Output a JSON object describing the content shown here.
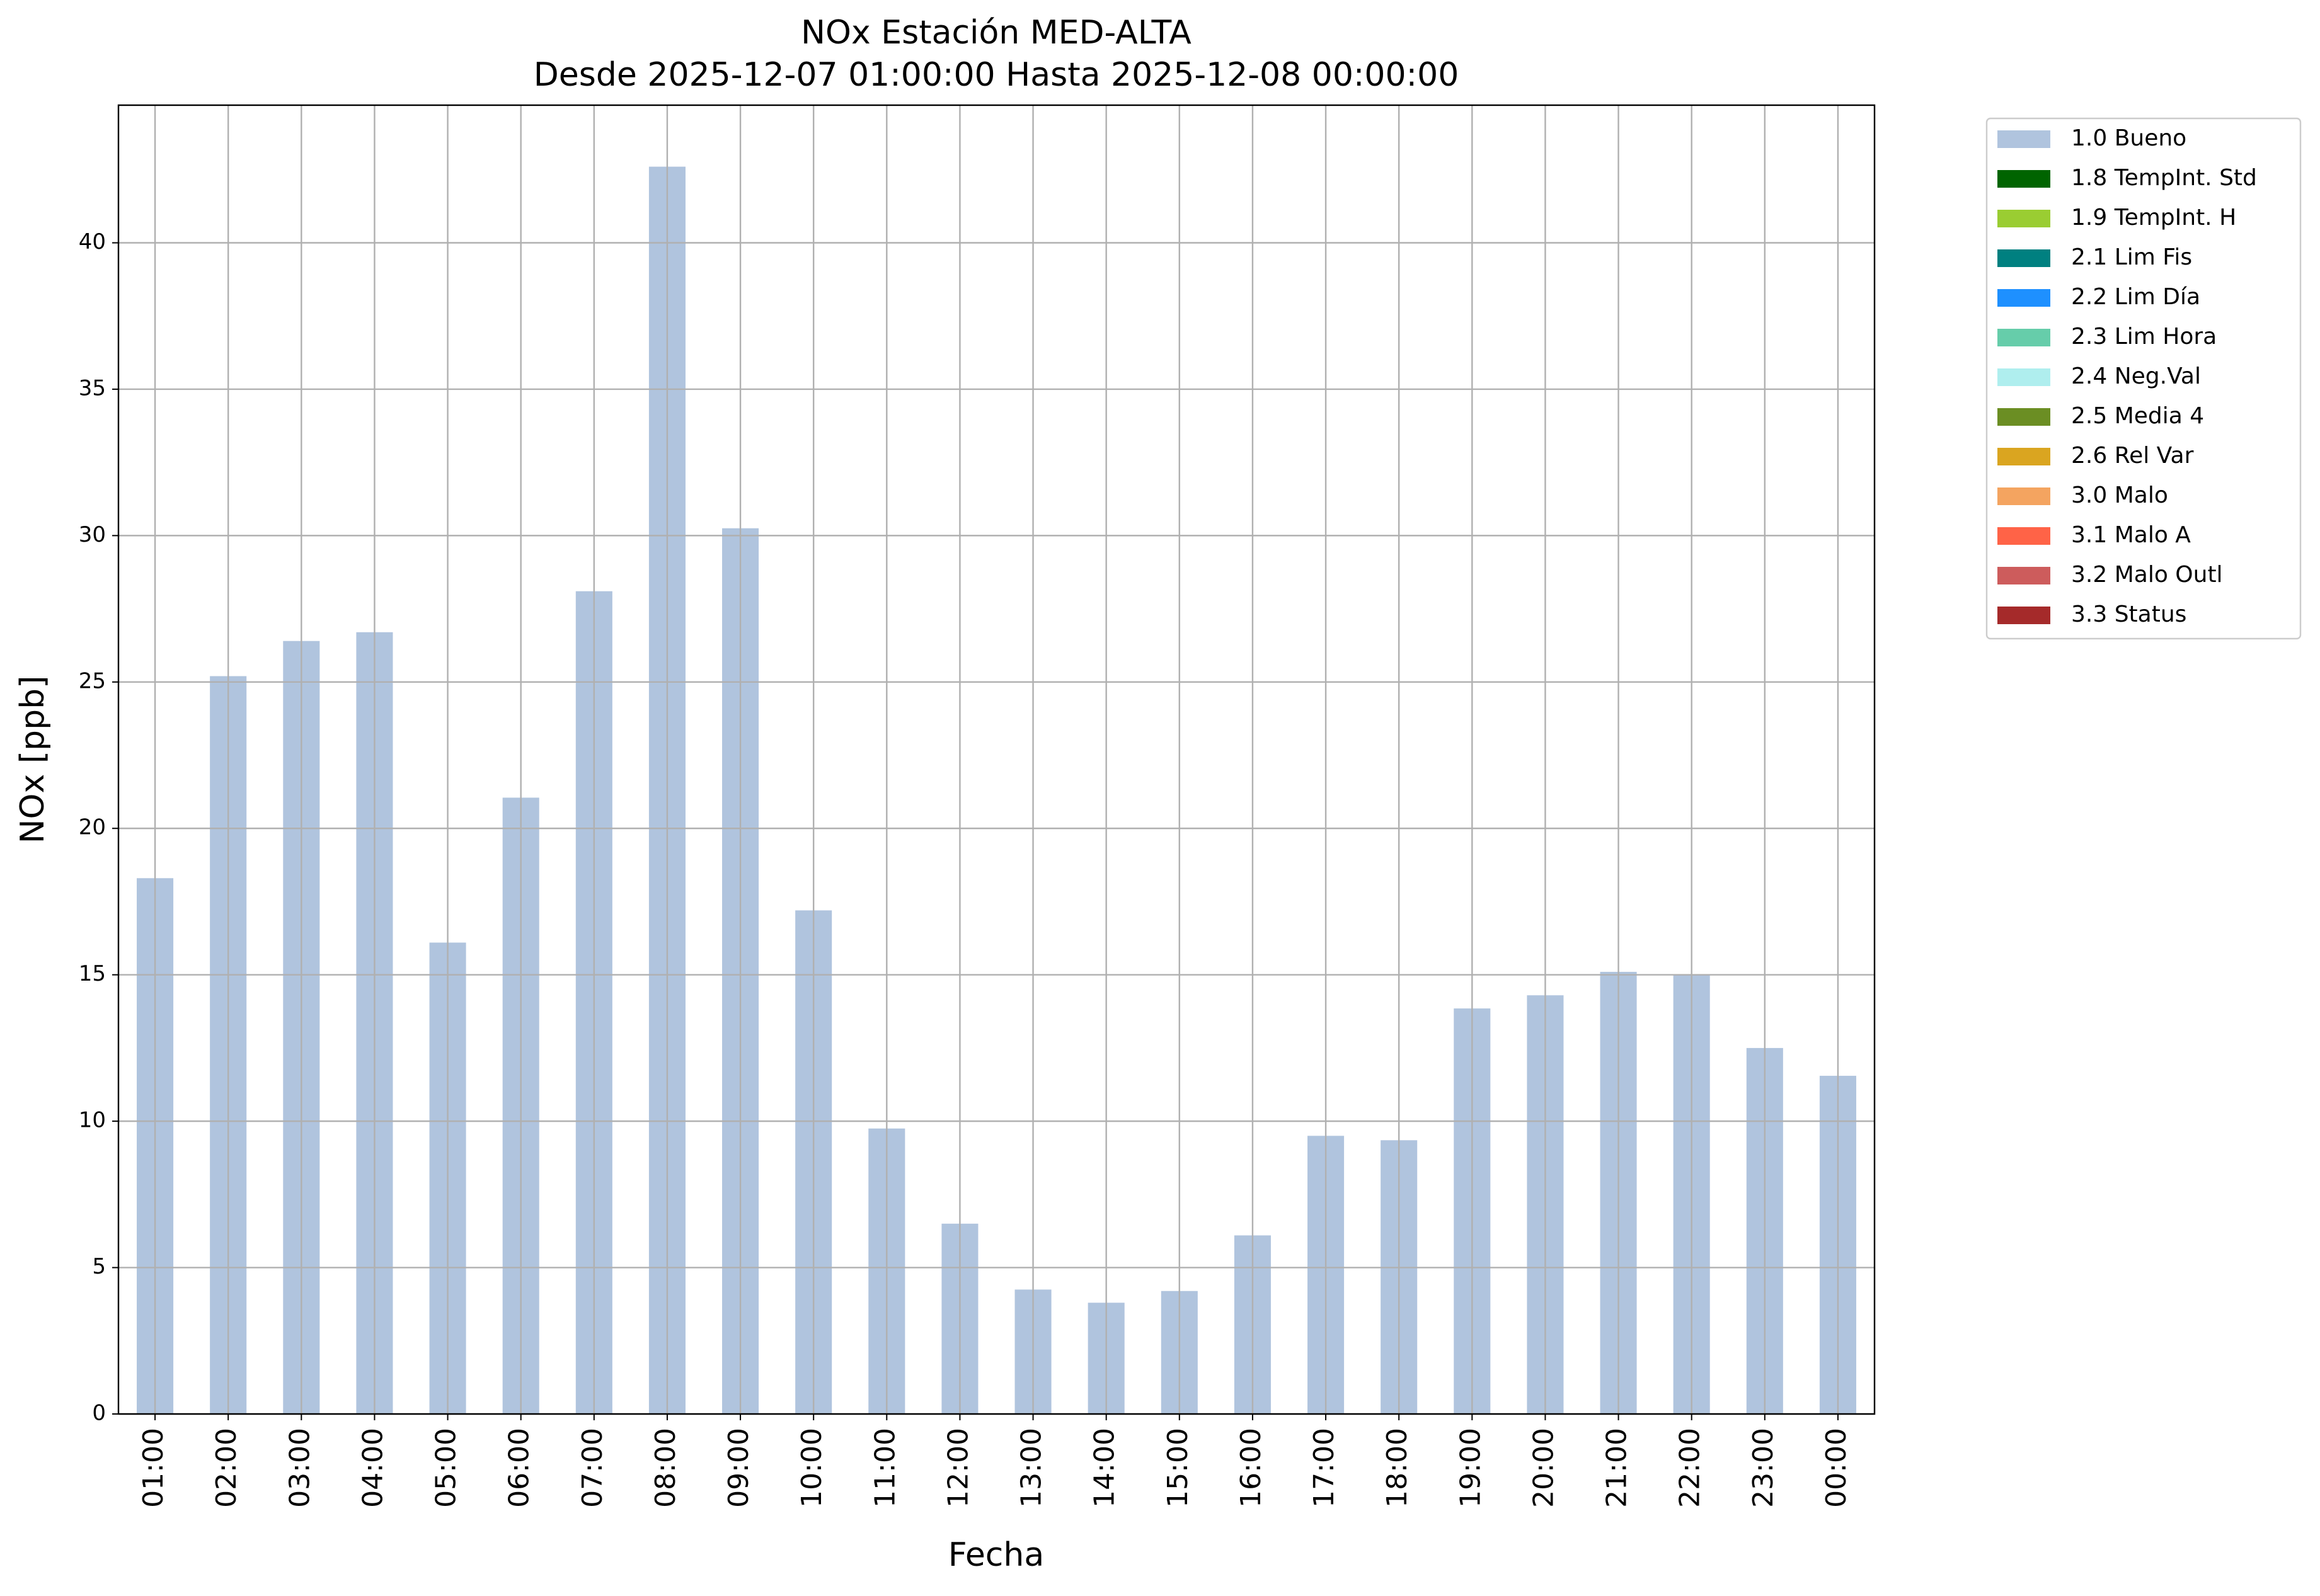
{
  "chart_data": {
    "type": "bar",
    "title": "NOx Estación MED-ALTA",
    "subtitle": "Desde 2025-12-07 01:00:00 Hasta 2025-12-08 00:00:00",
    "x_label": "Fecha",
    "y_label": "NOx [ppb]",
    "categories": [
      "01:00",
      "02:00",
      "03:00",
      "04:00",
      "05:00",
      "06:00",
      "07:00",
      "08:00",
      "09:00",
      "10:00",
      "11:00",
      "12:00",
      "13:00",
      "14:00",
      "15:00",
      "16:00",
      "17:00",
      "18:00",
      "19:00",
      "20:00",
      "21:00",
      "22:00",
      "23:00",
      "00:00"
    ],
    "series": [
      {
        "name": "1.0 Bueno",
        "color": "#b0c4de",
        "values": [
          18.3,
          25.2,
          26.4,
          26.7,
          16.1,
          21.05,
          28.1,
          42.6,
          30.25,
          17.2,
          9.75,
          6.5,
          4.25,
          3.8,
          4.2,
          6.1,
          9.5,
          9.35,
          13.85,
          14.3,
          15.1,
          15.0,
          12.5,
          11.55
        ]
      },
      {
        "name": "1.8 TempInt. Std",
        "color": "#006400"
      },
      {
        "name": "1.9 TempInt. H",
        "color": "#9acd32"
      },
      {
        "name": "2.1 Lim Fis",
        "color": "#008080"
      },
      {
        "name": "2.2 Lim Día",
        "color": "#1e90ff"
      },
      {
        "name": "2.3 Lim Hora",
        "color": "#66cdaa"
      },
      {
        "name": "2.4 Neg.Val",
        "color": "#afeeee"
      },
      {
        "name": "2.5 Media 4",
        "color": "#6b8e23"
      },
      {
        "name": "2.6 Rel Var",
        "color": "#daa520"
      },
      {
        "name": "3.0 Malo",
        "color": "#f4a460"
      },
      {
        "name": "3.1 Malo A",
        "color": "#ff6347"
      },
      {
        "name": "3.2 Malo Outl",
        "color": "#cd5c5c"
      },
      {
        "name": "3.3 Status",
        "color": "#a52a2a"
      }
    ],
    "ylim": [
      0,
      44.7
    ],
    "yticks": [
      0,
      5,
      10,
      15,
      20,
      25,
      30,
      35,
      40
    ],
    "grid": true,
    "legend": "outside upper right"
  }
}
